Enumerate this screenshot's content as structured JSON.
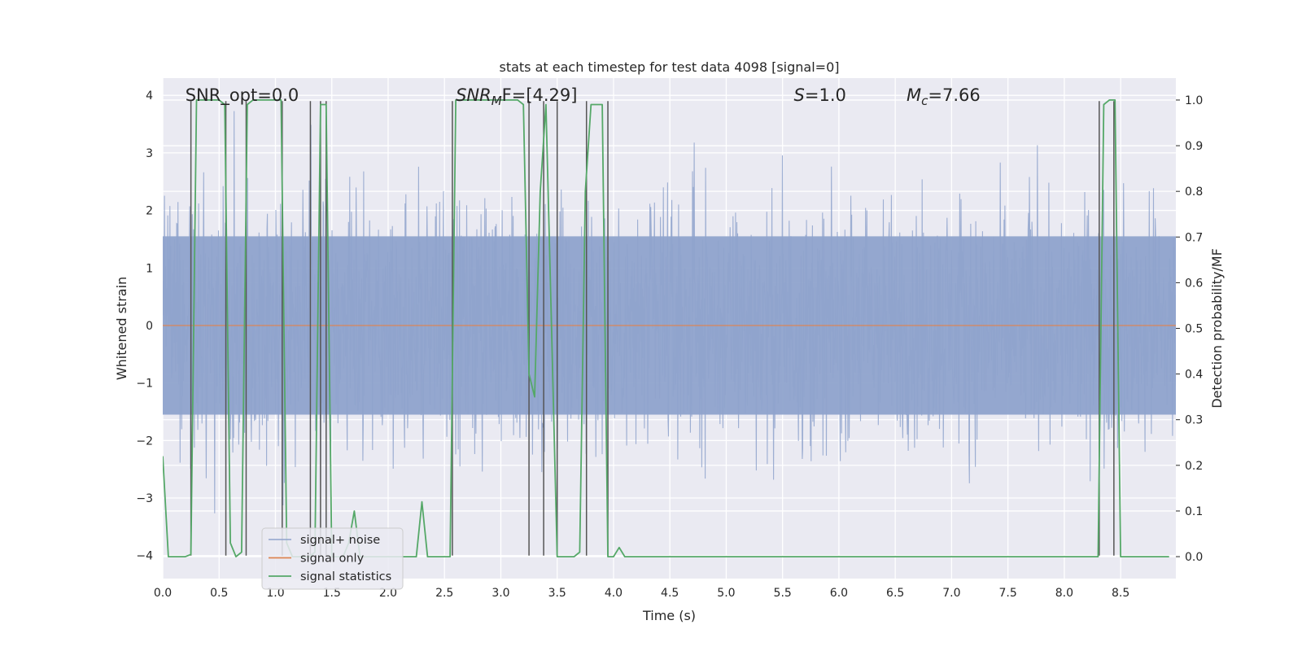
{
  "chart_data": {
    "type": "line",
    "title": "stats at each timestep for test data 4098 [signal=0]",
    "xlabel": "Time (s)",
    "ylabel": "Whitened strain",
    "y2label": "Detection probability/MF",
    "xlim": [
      0.0,
      8.99
    ],
    "ylim": [
      -4.4,
      4.3
    ],
    "y2lim": [
      -0.048,
      1.048
    ],
    "xticks": [
      0.0,
      0.5,
      1.0,
      1.5,
      2.0,
      2.5,
      3.0,
      3.5,
      4.0,
      4.5,
      5.0,
      5.5,
      6.0,
      6.5,
      7.0,
      7.5,
      8.0,
      8.5
    ],
    "xtick_labels": [
      "0.0",
      "0.5",
      "1.0",
      "1.5",
      "2.0",
      "2.5",
      "3.0",
      "3.5",
      "4.0",
      "4.5",
      "5.0",
      "5.5",
      "6.0",
      "6.5",
      "7.0",
      "7.5",
      "8.0",
      "8.5"
    ],
    "yticks": [
      4,
      3,
      2,
      1,
      0,
      -1,
      -2,
      -3,
      -4
    ],
    "ytick_labels": [
      "4",
      "3",
      "2",
      "1",
      "0",
      "−1",
      "−2",
      "−3",
      "−4"
    ],
    "y2ticks": [
      1.0,
      0.9,
      0.8,
      0.7,
      0.6,
      0.5,
      0.4,
      0.3,
      0.2,
      0.1,
      0.0
    ],
    "y2tick_labels": [
      "1.0",
      "0.9",
      "0.8",
      "0.7",
      "0.6",
      "0.5",
      "0.4",
      "0.3",
      "0.2",
      "0.1",
      "0.0"
    ],
    "grid": true,
    "legend_position": "lower-left",
    "annotations": [
      {
        "base": "SNR_opt=0.0",
        "sub": "",
        "rest": "",
        "italic": false,
        "x": 0.2
      },
      {
        "base": "SNR",
        "sub": "M",
        "rest": "F=[4.29]",
        "italic": true,
        "x": 2.6
      },
      {
        "base": "S",
        "sub": "",
        "rest": "=1.0",
        "italic": true,
        "x": 5.6
      },
      {
        "base": "M",
        "sub": "c",
        "rest": "=7.66",
        "italic": true,
        "x": 6.6
      }
    ],
    "annotation_y": 4.0,
    "series": [
      {
        "name": "signal+ noise",
        "color": "#8fa3cc",
        "axis": "left",
        "kind": "noise",
        "core_band": [
          -1.55,
          1.55
        ],
        "typical_peak": 2.5,
        "max_abs": 3.9
      },
      {
        "name": "signal only",
        "color": "#dd8452",
        "axis": "left",
        "x": [
          0.0,
          8.99
        ],
        "y": [
          0.0,
          0.0
        ]
      },
      {
        "name": "signal statistics",
        "color": "#55a868",
        "axis": "right",
        "x": [
          0.0,
          0.05,
          0.1,
          0.15,
          0.2,
          0.25,
          0.3,
          0.35,
          0.4,
          0.45,
          0.5,
          0.55,
          0.6,
          0.65,
          0.7,
          0.75,
          0.8,
          0.85,
          0.9,
          0.95,
          1.0,
          1.05,
          1.1,
          1.15,
          1.2,
          1.25,
          1.3,
          1.35,
          1.4,
          1.45,
          1.5,
          1.55,
          1.6,
          1.65,
          1.7,
          1.75,
          1.8,
          1.85,
          1.9,
          1.95,
          2.0,
          2.05,
          2.1,
          2.15,
          2.2,
          2.25,
          2.3,
          2.35,
          2.4,
          2.45,
          2.5,
          2.55,
          2.6,
          2.65,
          2.7,
          2.75,
          2.8,
          2.85,
          2.9,
          2.95,
          3.0,
          3.05,
          3.1,
          3.15,
          3.2,
          3.25,
          3.3,
          3.35,
          3.4,
          3.45,
          3.5,
          3.55,
          3.6,
          3.65,
          3.7,
          3.75,
          3.8,
          3.85,
          3.9,
          3.95,
          4.0,
          4.05,
          4.1,
          8.25,
          8.3,
          8.35,
          8.4,
          8.45,
          8.5,
          8.55,
          8.6,
          8.93
        ],
        "y": [
          0.22,
          0.0,
          0.0,
          0.0,
          0.0,
          0.005,
          1.0,
          1.0,
          1.0,
          1.0,
          1.0,
          0.99,
          0.03,
          0.0,
          0.01,
          0.99,
          1.0,
          1.0,
          1.0,
          1.0,
          1.0,
          1.0,
          0.03,
          0.0,
          0.0,
          0.0,
          0.0,
          0.01,
          0.99,
          0.99,
          0.0,
          0.0,
          0.0,
          0.03,
          0.1,
          0.0,
          0.0,
          0.0,
          0.0,
          0.0,
          0.0,
          0.0,
          0.0,
          0.0,
          0.0,
          0.0,
          0.12,
          0.0,
          0.0,
          0.0,
          0.0,
          0.0,
          1.0,
          1.0,
          1.0,
          1.0,
          1.0,
          1.0,
          1.0,
          1.0,
          1.0,
          1.0,
          1.0,
          1.0,
          0.99,
          0.4,
          0.35,
          0.8,
          0.99,
          0.5,
          0.0,
          0.0,
          0.0,
          0.0,
          0.01,
          0.8,
          0.99,
          0.99,
          0.99,
          0.0,
          0.0,
          0.02,
          0.0,
          0.0,
          0.0,
          0.99,
          1.0,
          1.0,
          0.0,
          0.0,
          0.0,
          0.0
        ]
      }
    ],
    "vlines": {
      "color": "#555555",
      "y_range": [
        -4.0,
        3.9
      ],
      "x": [
        0.25,
        0.56,
        0.74,
        1.06,
        1.31,
        1.4,
        1.45,
        2.57,
        3.25,
        3.38,
        3.5,
        3.76,
        3.95,
        8.31,
        8.44
      ]
    }
  }
}
